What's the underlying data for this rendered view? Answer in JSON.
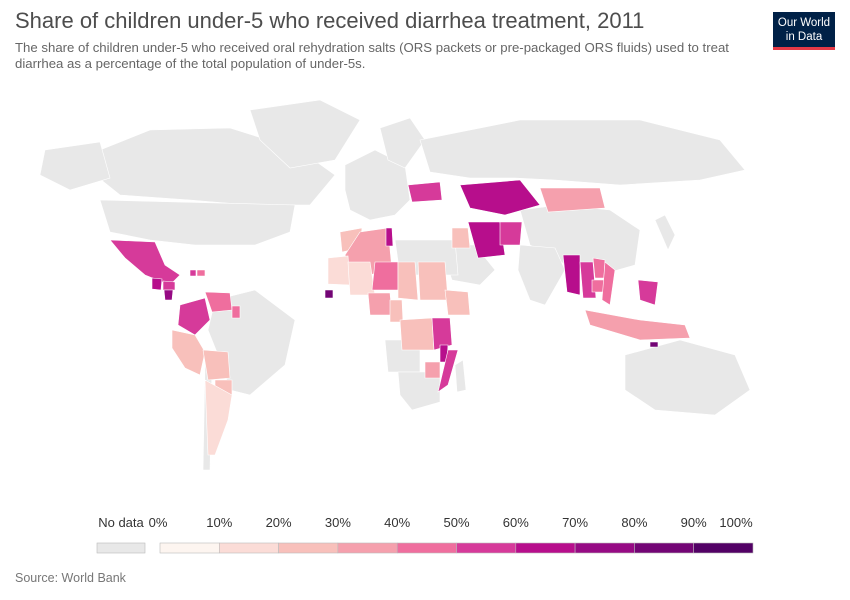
{
  "header": {
    "title": "Share of children under-5 who received diarrhea treatment, 2011",
    "subtitle": "The share of children under-5 who received oral rehydration salts (ORS packets or pre-packaged ORS fluids) used to treat diarrhea as a percentage of the total population of under-5s."
  },
  "logo": {
    "line1": "Our World",
    "line2": "in Data"
  },
  "footer": {
    "source": "Source: World Bank"
  },
  "colors": {
    "no_data": "#e8e8e8",
    "bins": [
      "#fdf5f0",
      "#fbdcd7",
      "#f8c0bb",
      "#f5a0ad",
      "#ef6e9e",
      "#d63a9a",
      "#b70e8c",
      "#960a84",
      "#730575",
      "#520165"
    ]
  },
  "legend": {
    "no_data_label": "No data",
    "tick_labels": [
      "0%",
      "10%",
      "20%",
      "30%",
      "40%",
      "50%",
      "60%",
      "70%",
      "80%",
      "90%",
      "100%"
    ]
  },
  "chart_data": {
    "type": "choropleth",
    "year": 2011,
    "unit": "%",
    "scale": [
      0,
      100
    ],
    "countries": [
      {
        "name": "Mexico",
        "value": 55
      },
      {
        "name": "Guatemala",
        "value": 60
      },
      {
        "name": "Honduras",
        "value": 55
      },
      {
        "name": "Nicaragua",
        "value": 75
      },
      {
        "name": "Haiti",
        "value": 50
      },
      {
        "name": "Dominican Republic",
        "value": 45
      },
      {
        "name": "Colombia",
        "value": 55
      },
      {
        "name": "Venezuela",
        "value": 40
      },
      {
        "name": "Guyana",
        "value": 45
      },
      {
        "name": "Peru",
        "value": 25
      },
      {
        "name": "Bolivia",
        "value": 25
      },
      {
        "name": "Paraguay",
        "value": 20
      },
      {
        "name": "Argentina",
        "value": 15
      },
      {
        "name": "Morocco",
        "value": 25
      },
      {
        "name": "Algeria",
        "value": 30
      },
      {
        "name": "Tunisia",
        "value": 65
      },
      {
        "name": "Mauritania",
        "value": 10
      },
      {
        "name": "Mali",
        "value": 15
      },
      {
        "name": "Niger",
        "value": 45
      },
      {
        "name": "Chad",
        "value": 25
      },
      {
        "name": "Sudan",
        "value": 20
      },
      {
        "name": "Ethiopia",
        "value": 25
      },
      {
        "name": "Nigeria",
        "value": 30
      },
      {
        "name": "Cameroon",
        "value": 20
      },
      {
        "name": "DR Congo",
        "value": 20
      },
      {
        "name": "Tanzania",
        "value": 50
      },
      {
        "name": "Malawi",
        "value": 65
      },
      {
        "name": "Mozambique",
        "value": 55
      },
      {
        "name": "Zimbabwe",
        "value": 30
      },
      {
        "name": "Sierra Leone",
        "value": 80
      },
      {
        "name": "Ukraine",
        "value": 50
      },
      {
        "name": "Kazakhstan",
        "value": 65
      },
      {
        "name": "Mongolia",
        "value": 35
      },
      {
        "name": "Iran",
        "value": 65
      },
      {
        "name": "Afghanistan",
        "value": 55
      },
      {
        "name": "Iraq",
        "value": 25
      },
      {
        "name": "Myanmar",
        "value": 65
      },
      {
        "name": "Thailand",
        "value": 55
      },
      {
        "name": "Laos",
        "value": 45
      },
      {
        "name": "Cambodia",
        "value": 45
      },
      {
        "name": "Vietnam",
        "value": 40
      },
      {
        "name": "Philippines",
        "value": 55
      },
      {
        "name": "Indonesia",
        "value": 35
      },
      {
        "name": "Timor-Leste",
        "value": 80
      }
    ]
  }
}
